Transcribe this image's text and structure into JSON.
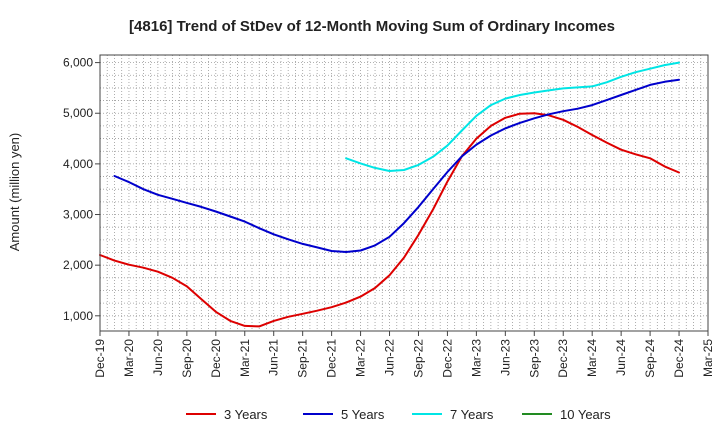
{
  "chart_data": {
    "type": "line",
    "title": "[4816]  Trend of StDev of 12-Month Moving Sum of Ordinary Incomes",
    "xlabel": "",
    "ylabel": "Amount (million yen)",
    "ylim": [
      700,
      6150
    ],
    "yticks": [
      1000,
      2000,
      3000,
      4000,
      5000,
      6000
    ],
    "ytick_labels": [
      "1,000",
      "2,000",
      "3,000",
      "4,000",
      "5,000",
      "6,000"
    ],
    "x_categories": [
      "Dec-19",
      "Mar-20",
      "Jun-20",
      "Sep-20",
      "Dec-20",
      "Mar-21",
      "Jun-21",
      "Sep-21",
      "Dec-21",
      "Mar-22",
      "Jun-22",
      "Sep-22",
      "Dec-22",
      "Mar-23",
      "Jun-23",
      "Sep-23",
      "Dec-23",
      "Mar-24",
      "Jun-24",
      "Sep-24",
      "Dec-24",
      "Mar-25"
    ],
    "grid": true,
    "legend_position": "bottom",
    "series": [
      {
        "name": "3 Years",
        "color": "#dd0000",
        "points": [
          [
            0,
            2200
          ],
          [
            1,
            2090
          ],
          [
            2,
            2010
          ],
          [
            3,
            1950
          ],
          [
            4,
            1870
          ],
          [
            5,
            1750
          ],
          [
            6,
            1580
          ],
          [
            7,
            1330
          ],
          [
            8,
            1080
          ],
          [
            9,
            900
          ],
          [
            10,
            800
          ],
          [
            11,
            790
          ],
          [
            12,
            900
          ],
          [
            13,
            980
          ],
          [
            14,
            1040
          ],
          [
            15,
            1100
          ],
          [
            16,
            1170
          ],
          [
            17,
            1260
          ],
          [
            18,
            1380
          ],
          [
            19,
            1550
          ],
          [
            20,
            1800
          ],
          [
            21,
            2150
          ],
          [
            22,
            2600
          ],
          [
            23,
            3100
          ],
          [
            24,
            3650
          ],
          [
            25,
            4150
          ],
          [
            26,
            4500
          ],
          [
            27,
            4750
          ],
          [
            28,
            4910
          ],
          [
            29,
            4990
          ],
          [
            30,
            5000
          ],
          [
            31,
            4960
          ],
          [
            32,
            4870
          ],
          [
            33,
            4730
          ],
          [
            34,
            4570
          ],
          [
            35,
            4420
          ],
          [
            36,
            4280
          ],
          [
            37,
            4190
          ],
          [
            38,
            4110
          ],
          [
            39,
            3950
          ],
          [
            40,
            3830
          ]
        ]
      },
      {
        "name": "5 Years",
        "color": "#0000cc",
        "points": [
          [
            1,
            3760
          ],
          [
            2,
            3640
          ],
          [
            3,
            3500
          ],
          [
            4,
            3390
          ],
          [
            5,
            3310
          ],
          [
            6,
            3230
          ],
          [
            7,
            3150
          ],
          [
            8,
            3060
          ],
          [
            9,
            2960
          ],
          [
            10,
            2860
          ],
          [
            11,
            2730
          ],
          [
            12,
            2610
          ],
          [
            13,
            2510
          ],
          [
            14,
            2420
          ],
          [
            15,
            2350
          ],
          [
            16,
            2280
          ],
          [
            17,
            2260
          ],
          [
            18,
            2290
          ],
          [
            19,
            2390
          ],
          [
            20,
            2560
          ],
          [
            21,
            2830
          ],
          [
            22,
            3150
          ],
          [
            23,
            3500
          ],
          [
            24,
            3840
          ],
          [
            25,
            4150
          ],
          [
            26,
            4380
          ],
          [
            27,
            4560
          ],
          [
            28,
            4700
          ],
          [
            29,
            4810
          ],
          [
            30,
            4900
          ],
          [
            31,
            4980
          ],
          [
            32,
            5040
          ],
          [
            33,
            5090
          ],
          [
            34,
            5160
          ],
          [
            35,
            5260
          ],
          [
            36,
            5360
          ],
          [
            37,
            5460
          ],
          [
            38,
            5560
          ],
          [
            39,
            5620
          ],
          [
            40,
            5660
          ]
        ]
      },
      {
        "name": "7 Years",
        "color": "#00e5e5",
        "points": [
          [
            17,
            4110
          ],
          [
            18,
            4010
          ],
          [
            19,
            3920
          ],
          [
            20,
            3860
          ],
          [
            21,
            3880
          ],
          [
            22,
            3980
          ],
          [
            23,
            4140
          ],
          [
            24,
            4360
          ],
          [
            25,
            4660
          ],
          [
            26,
            4950
          ],
          [
            27,
            5160
          ],
          [
            28,
            5290
          ],
          [
            29,
            5360
          ],
          [
            30,
            5410
          ],
          [
            31,
            5450
          ],
          [
            32,
            5490
          ],
          [
            33,
            5510
          ],
          [
            34,
            5530
          ],
          [
            35,
            5610
          ],
          [
            36,
            5720
          ],
          [
            37,
            5810
          ],
          [
            38,
            5880
          ],
          [
            39,
            5950
          ],
          [
            40,
            6000
          ]
        ]
      },
      {
        "name": "10 Years",
        "color": "#228b22",
        "points": []
      }
    ]
  }
}
